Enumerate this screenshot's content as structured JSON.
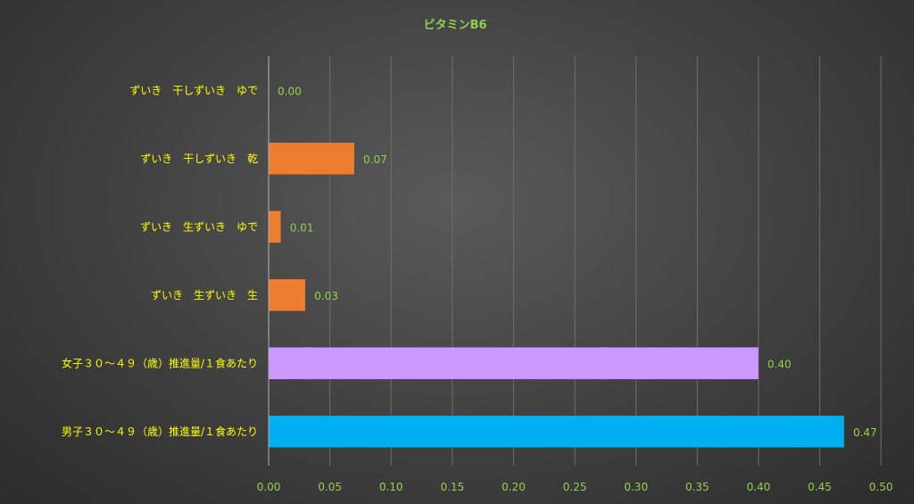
{
  "chart_data": {
    "type": "bar",
    "orientation": "horizontal",
    "title": "ビタミンB6",
    "categories": [
      "ずいき　干しずいき　ゆで",
      "ずいき　干しずいき　乾",
      "ずいき　生ずいき　ゆで",
      "ずいき　生ずいき　生",
      "女子３０～４９（歳）推進量/１食あたり",
      "男子３０～４９（歳）推進量/１食あたり"
    ],
    "values": [
      0.0,
      0.07,
      0.01,
      0.03,
      0.4,
      0.47
    ],
    "value_labels": [
      "0.00",
      "0.07",
      "0.01",
      "0.03",
      "0.40",
      "0.47"
    ],
    "bar_colors": [
      "#ed7d31",
      "#ed7d31",
      "#ed7d31",
      "#ed7d31",
      "#cc99ff",
      "#00b0f0"
    ],
    "xlim": [
      0,
      0.5
    ],
    "x_ticks": [
      "0.00",
      "0.05",
      "0.10",
      "0.15",
      "0.20",
      "0.25",
      "0.30",
      "0.35",
      "0.40",
      "0.45",
      "0.50"
    ],
    "grid": true,
    "legend": "none",
    "colors": {
      "title_text": "#92d050",
      "category_text": "#ffff00",
      "value_text": "#92d050",
      "tick_text": "#92d050",
      "gridline": "#6e6e6e",
      "axis": "#b4b4b4"
    }
  }
}
